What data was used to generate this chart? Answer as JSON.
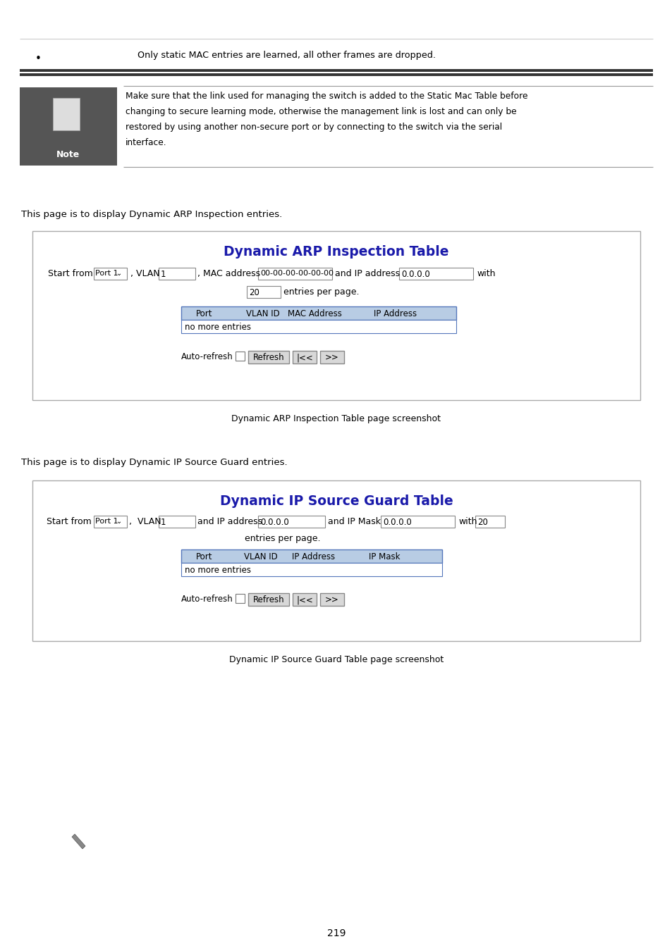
{
  "bg_color": "#ffffff",
  "text_color": "#000000",
  "blue_title_color": "#1a1aaa",
  "header_bg": "#b8cce4",
  "border_color": "#999999",
  "page_number": "219",
  "bullet_text": "Only static MAC entries are learned, all other frames are dropped.",
  "note_bg": "#555555",
  "note_text_lines": [
    "Make sure that the link used for managing the switch is added to the Static Mac Table before",
    "changing to secure learning mode, otherwise the management link is lost and can only be",
    "restored by using another non-secure port or by connecting to the switch via the serial",
    "interface."
  ],
  "section1_intro": "This page is to display Dynamic ARP Inspection entries.",
  "section1_title": "Dynamic ARP Inspection Table",
  "section1_headers": [
    "Port",
    "VLAN ID",
    "MAC Address",
    "IP Address"
  ],
  "section1_no_more": "no more entries",
  "section1_caption": "Dynamic ARP Inspection Table page screenshot",
  "section2_intro": "This page is to display Dynamic IP Source Guard entries.",
  "section2_title": "Dynamic IP Source Guard Table",
  "section2_headers": [
    "Port",
    "VLAN ID",
    "IP Address",
    "IP Mask"
  ],
  "section2_no_more": "no more entries",
  "section2_caption": "Dynamic IP Source Guard Table page screenshot"
}
